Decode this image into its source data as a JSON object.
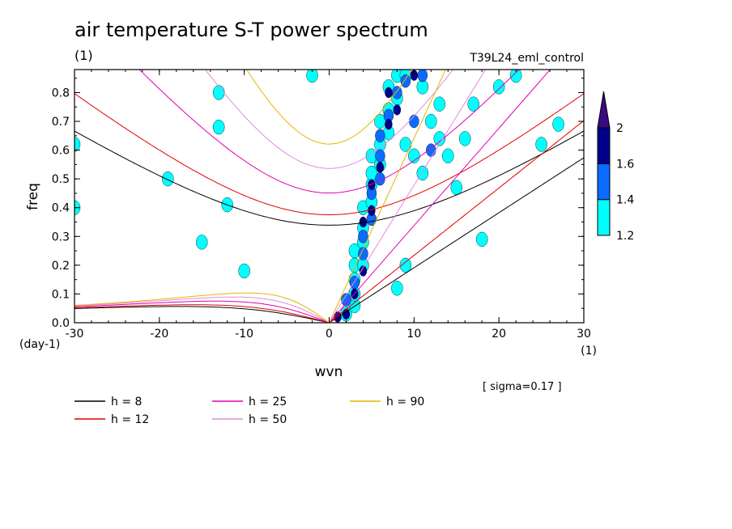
{
  "chart_data": {
    "type": "heatmap",
    "title": "air temperature S-T power spectrum",
    "subtitle_left": "(1)",
    "subtitle_right": "T39L24_eml_control",
    "xlabel": "wvn",
    "ylabel": "freq",
    "x_unit": "(1)",
    "y_unit": "(day-1)",
    "xlim": [
      -30,
      30
    ],
    "ylim": [
      0,
      0.88
    ],
    "x_ticks": [
      -30,
      -20,
      -10,
      0,
      10,
      20,
      30
    ],
    "x_tick_labels": [
      "-30",
      "-20",
      "-10",
      "0",
      "10",
      "20",
      "30"
    ],
    "y_ticks": [
      0,
      0.1,
      0.2,
      0.3,
      0.4,
      0.5,
      0.6,
      0.7,
      0.8
    ],
    "y_tick_labels": [
      "0.0",
      "0.1",
      "0.2",
      "0.3",
      "0.4",
      "0.5",
      "0.6",
      "0.7",
      "0.8"
    ],
    "annotation": "[ sigma=0.17 ]",
    "colorbar": {
      "levels": [
        "1.2",
        "1.4",
        "1.6",
        "2"
      ],
      "colors": [
        "#00ffff",
        "#0a6cff",
        "#00008b",
        "#3a0a80"
      ]
    },
    "dispersion_curves": [
      {
        "label": "h =  8",
        "h": 8,
        "color": "#000000"
      },
      {
        "label": "h = 12",
        "h": 12,
        "color": "#e00000"
      },
      {
        "label": "h = 25",
        "h": 25,
        "color": "#e000b0"
      },
      {
        "label": "h = 50",
        "h": 50,
        "color": "#e08ce0"
      },
      {
        "label": "h = 90",
        "h": 90,
        "color": "#e8b400"
      }
    ],
    "contours": [
      {
        "level": 1.2,
        "cells": [
          [
            2,
            0.03
          ],
          [
            3,
            0.06
          ],
          [
            3,
            0.1
          ],
          [
            3,
            0.15
          ],
          [
            3,
            0.2
          ],
          [
            3,
            0.25
          ],
          [
            4,
            0.2
          ],
          [
            4,
            0.28
          ],
          [
            4,
            0.33
          ],
          [
            4,
            0.4
          ],
          [
            5,
            0.42
          ],
          [
            5,
            0.48
          ],
          [
            5,
            0.52
          ],
          [
            5,
            0.58
          ],
          [
            6,
            0.55
          ],
          [
            6,
            0.62
          ],
          [
            6,
            0.7
          ],
          [
            7,
            0.66
          ],
          [
            7,
            0.74
          ],
          [
            7,
            0.82
          ],
          [
            8,
            0.78
          ],
          [
            8,
            0.86
          ],
          [
            9,
            0.62
          ],
          [
            10,
            0.58
          ],
          [
            11,
            0.52
          ],
          [
            12,
            0.7
          ],
          [
            13,
            0.64
          ],
          [
            9,
            0.86
          ],
          [
            11,
            0.82
          ],
          [
            13,
            0.76
          ],
          [
            14,
            0.58
          ],
          [
            15,
            0.47
          ],
          [
            16,
            0.64
          ],
          [
            20,
            0.82
          ],
          [
            22,
            0.86
          ],
          [
            17,
            0.76
          ],
          [
            -10,
            0.18
          ],
          [
            -15,
            0.28
          ],
          [
            -12,
            0.41
          ],
          [
            -30,
            0.4
          ],
          [
            -30,
            0.62
          ],
          [
            -13,
            0.8
          ],
          [
            -2,
            0.86
          ],
          [
            -19,
            0.5
          ],
          [
            -13,
            0.68
          ],
          [
            25,
            0.62
          ],
          [
            27,
            0.69
          ],
          [
            18,
            0.29
          ],
          [
            9,
            0.2
          ],
          [
            8,
            0.12
          ]
        ]
      },
      {
        "level": 1.4,
        "cells": [
          [
            2,
            0.08
          ],
          [
            3,
            0.14
          ],
          [
            4,
            0.24
          ],
          [
            4,
            0.3
          ],
          [
            5,
            0.36
          ],
          [
            5,
            0.45
          ],
          [
            6,
            0.5
          ],
          [
            6,
            0.58
          ],
          [
            6,
            0.65
          ],
          [
            7,
            0.72
          ],
          [
            8,
            0.8
          ],
          [
            9,
            0.84
          ],
          [
            11,
            0.86
          ],
          [
            10,
            0.7
          ],
          [
            12,
            0.6
          ]
        ]
      },
      {
        "level": 1.6,
        "cells": [
          [
            1,
            0.02
          ],
          [
            2,
            0.03
          ],
          [
            4,
            0.35
          ],
          [
            5,
            0.39
          ],
          [
            5,
            0.48
          ],
          [
            6,
            0.54
          ],
          [
            7,
            0.69
          ],
          [
            7,
            0.8
          ],
          [
            8,
            0.74
          ],
          [
            10,
            0.86
          ],
          [
            4,
            0.18
          ],
          [
            3,
            0.1
          ]
        ]
      }
    ]
  }
}
